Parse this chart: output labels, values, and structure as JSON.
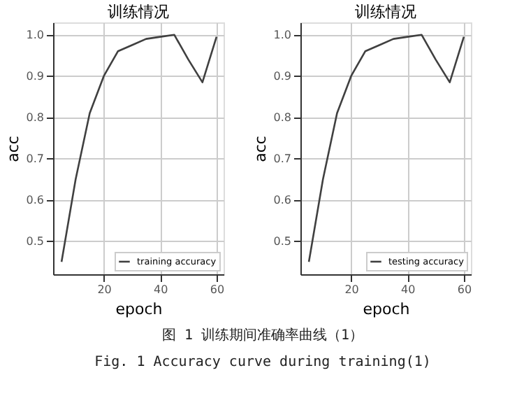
{
  "chart_data": [
    {
      "type": "line",
      "title": "训练情况",
      "xlabel": "epoch",
      "ylabel": "acc",
      "x": [
        5,
        10,
        15,
        20,
        25,
        30,
        35,
        40,
        45,
        50,
        55,
        60
      ],
      "series": [
        {
          "name": "training accuracy",
          "color": "#404040",
          "values": [
            0.45,
            0.65,
            0.81,
            0.9,
            0.96,
            0.975,
            0.99,
            0.995,
            1.0,
            0.94,
            0.885,
            0.995
          ]
        }
      ],
      "xlim": [
        2,
        62.5
      ],
      "xticks": [
        20,
        40,
        60
      ],
      "ylim": [
        0.42,
        1.03
      ],
      "yticks": [
        0.5,
        0.6,
        0.7,
        0.8,
        0.9,
        {
          "value": 1,
          "label": "1.0"
        }
      ],
      "grid": true,
      "legend": "bottom right",
      "line_style": "solid",
      "marker": "none",
      "annotations": [
        "图 1 训练期间准确率曲线（1）",
        "Fig. 1 Accuracy curve during training(1)"
      ]
    },
    {
      "type": "line",
      "title": "训练情况",
      "xlabel": "epoch",
      "ylabel": "acc",
      "x": [
        5,
        10,
        15,
        20,
        25,
        30,
        35,
        40,
        45,
        50,
        55,
        60
      ],
      "series": [
        {
          "name": "testing accuracy",
          "color": "#404040",
          "values": [
            0.45,
            0.65,
            0.81,
            0.9,
            0.96,
            0.975,
            0.99,
            0.995,
            1.0,
            0.94,
            0.885,
            0.995
          ]
        }
      ],
      "xlim": [
        2,
        62.5
      ],
      "xticks": [
        20,
        40,
        60
      ],
      "ylim": [
        0.42,
        1.03
      ],
      "yticks": [
        0.5,
        0.6,
        0.7,
        0.8,
        0.9,
        {
          "value": 1,
          "label": "1.0"
        }
      ],
      "grid": true,
      "legend": "bottom right",
      "line_style": "solid",
      "marker": "none"
    }
  ]
}
